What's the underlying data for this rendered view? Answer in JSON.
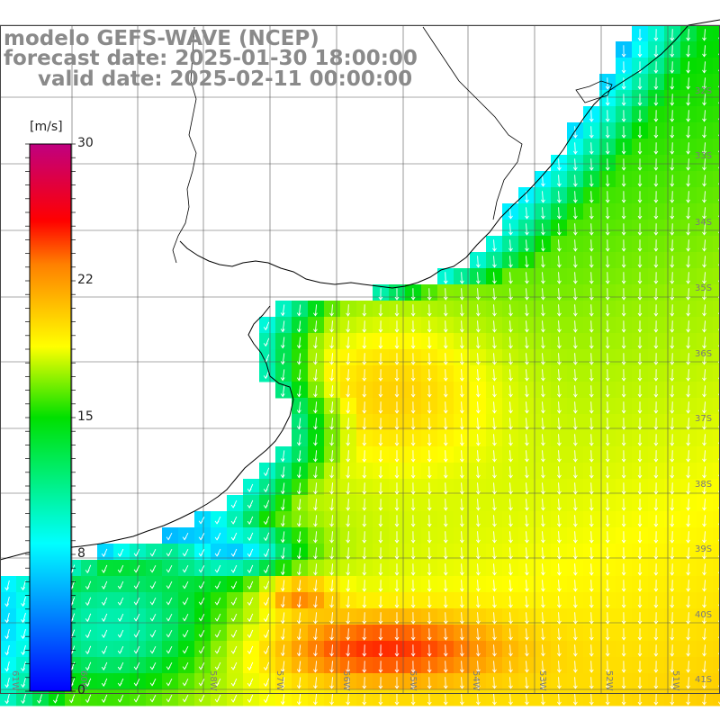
{
  "title": {
    "line1": "modelo GEFS-WAVE (NCEP)",
    "line2": "forecast date: 2025-01-30 18:00:00",
    "line3": "valid date: 2025-02-11 00:00:00"
  },
  "colorbar": {
    "unit": "[m/s]",
    "ticks": [
      "30",
      "22",
      "15",
      "8",
      "0"
    ],
    "tick_values": [
      30,
      22,
      15,
      8,
      0
    ],
    "min": 0,
    "max": 30,
    "colors": [
      "#0000ff",
      "#00ffff",
      "#00ff00",
      "#ffff00",
      "#ff8000",
      "#ff0000",
      "#c00080"
    ]
  },
  "lat_labels": [
    "32S",
    "33S",
    "34S",
    "35S",
    "36S",
    "37S",
    "38S",
    "39S",
    "40S",
    "41S"
  ],
  "lon_labels": [
    "61W",
    "60W",
    "58W",
    "57W",
    "56W",
    "55W",
    "54W",
    "53W",
    "52W",
    "51W"
  ]
}
